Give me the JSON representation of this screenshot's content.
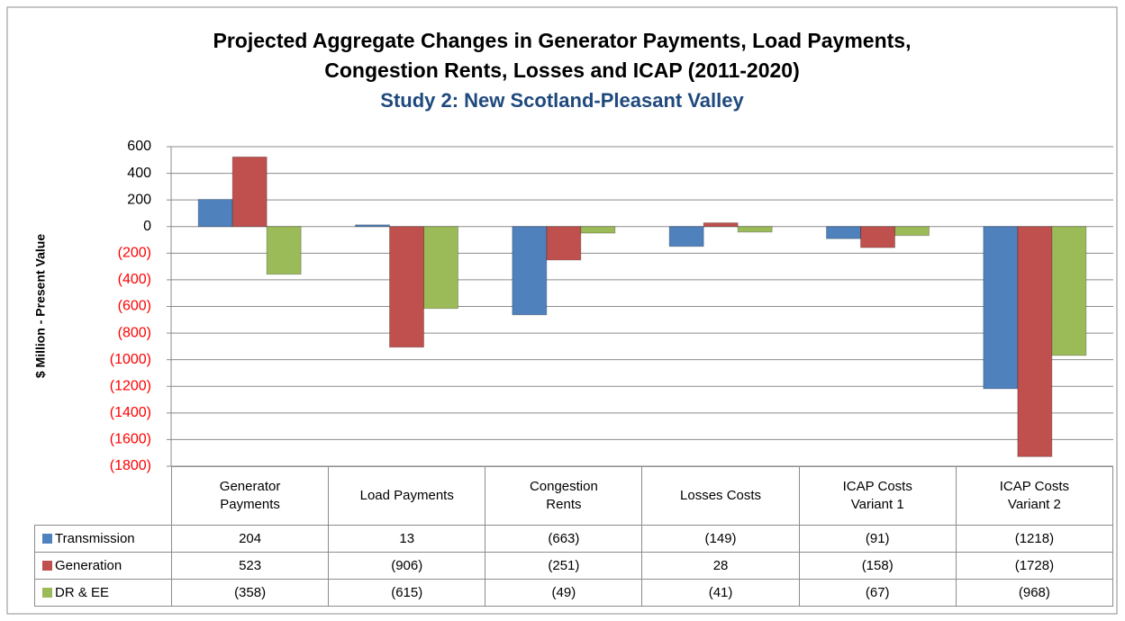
{
  "chart_data": {
    "type": "bar",
    "title": [
      "Projected Aggregate Changes in Generator Payments, Load Payments,",
      "Congestion Rents, Losses and ICAP (2011-2020)"
    ],
    "subtitle": "Study 2:  New Scotland-Pleasant Valley",
    "ylabel": "$ Million  - Present Value",
    "categories": [
      "Generator Payments",
      "Load Payments",
      "Congestion Rents",
      "Losses Costs",
      "ICAP Costs Variant 1",
      "ICAP Costs Variant 2"
    ],
    "series": [
      {
        "name": "Transmission",
        "color": "#4f81bd",
        "values": [
          204,
          13,
          -663,
          -149,
          -91,
          -1218
        ],
        "value_labels": [
          "204",
          "13",
          "(663)",
          "(149)",
          "(91)",
          "(1218)"
        ]
      },
      {
        "name": "Generation",
        "color": "#c0504d",
        "values": [
          523,
          -906,
          -251,
          28,
          -158,
          -1728
        ],
        "value_labels": [
          "523",
          "(906)",
          "(251)",
          "28",
          "(158)",
          "(1728)"
        ]
      },
      {
        "name": "DR & EE",
        "color": "#9bbb59",
        "values": [
          -358,
          -615,
          -49,
          -41,
          -67,
          -968
        ],
        "value_labels": [
          "(358)",
          "(615)",
          "(49)",
          "(41)",
          "(67)",
          "(968)"
        ]
      }
    ],
    "ylim": [
      -1800,
      600
    ],
    "yticks": [
      600,
      400,
      200,
      0,
      {
        "value": -200,
        "label": "(200)"
      },
      {
        "value": -400,
        "label": "(400)"
      },
      {
        "value": -600,
        "label": "(600)"
      },
      {
        "value": -800,
        "label": "(800)"
      },
      {
        "value": -1000,
        "label": "(1000)"
      },
      {
        "value": -1200,
        "label": "(1200)"
      },
      {
        "value": -1400,
        "label": "(1400)"
      },
      {
        "value": -1600,
        "label": "(1600)"
      },
      {
        "value": -1800,
        "label": "(1800)"
      }
    ],
    "negative_tick_color": "#ff0000",
    "grid": true,
    "data_table": true
  }
}
